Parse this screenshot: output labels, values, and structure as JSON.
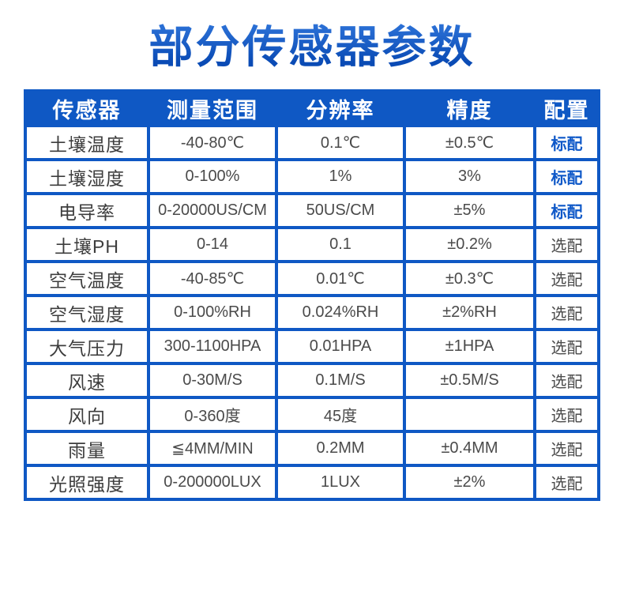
{
  "title": "部分传感器参数",
  "colors": {
    "blue": "#0F58C4",
    "blue_text": "#0E58C8",
    "title_top": "#4189EC",
    "title_bottom": "#0A4BB5",
    "text_dark": "#3D3D3D",
    "text_gray": "#4A4A4A",
    "page_bg": "#FFFFFF"
  },
  "table": {
    "headers": [
      "传感器",
      "测量范围",
      "分辨率",
      "精度",
      "配置"
    ],
    "standard_label": "标配",
    "optional_label": "选配",
    "rows": [
      {
        "sensor": "土壤温度",
        "range": "-40-80℃",
        "resolution": "0.1℃",
        "accuracy": "±0.5℃",
        "config": "标配"
      },
      {
        "sensor": "土壤湿度",
        "range": "0-100%",
        "resolution": "1%",
        "accuracy": "3%",
        "config": "标配"
      },
      {
        "sensor": "电导率",
        "range": "0-20000US/CM",
        "resolution": "50US/CM",
        "accuracy": "±5%",
        "config": "标配"
      },
      {
        "sensor": "土壤PH",
        "range": "0-14",
        "resolution": "0.1",
        "accuracy": "±0.2%",
        "config": "选配"
      },
      {
        "sensor": "空气温度",
        "range": "-40-85℃",
        "resolution": "0.01℃",
        "accuracy": "±0.3℃",
        "config": "选配"
      },
      {
        "sensor": "空气湿度",
        "range": "0-100%RH",
        "resolution": "0.024%RH",
        "accuracy": "±2%RH",
        "config": "选配"
      },
      {
        "sensor": "大气压力",
        "range": "300-1100HPA",
        "resolution": "0.01HPA",
        "accuracy": "±1HPA",
        "config": "选配"
      },
      {
        "sensor": "风速",
        "range": "0-30M/S",
        "resolution": "0.1M/S",
        "accuracy": "±0.5M/S",
        "config": "选配"
      },
      {
        "sensor": "风向",
        "range": "0-360度",
        "resolution": "45度",
        "accuracy": "",
        "config": "选配"
      },
      {
        "sensor": "雨量",
        "range": "≦4MM/MIN",
        "resolution": "0.2MM",
        "accuracy": "±0.4MM",
        "config": "选配"
      },
      {
        "sensor": "光照强度",
        "range": "0-200000LUX",
        "resolution": "1LUX",
        "accuracy": "±2%",
        "config": "选配"
      }
    ]
  }
}
